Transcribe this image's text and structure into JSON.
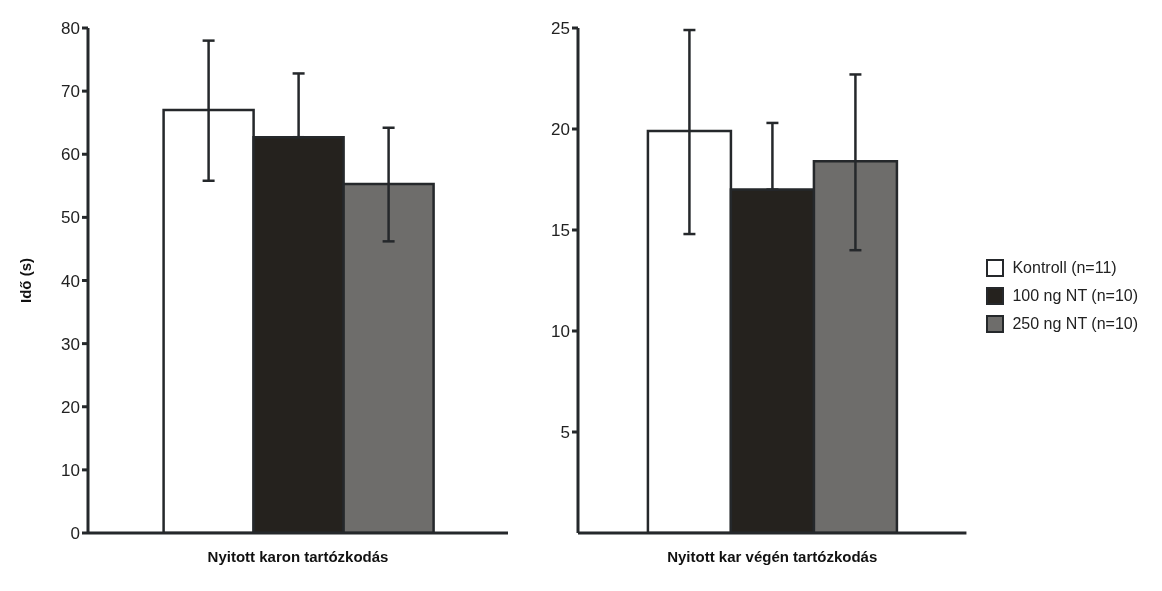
{
  "chart_data": [
    {
      "type": "bar",
      "ylabel": "Idő (s)",
      "categories": [
        "Nyitott karon tartózkodás"
      ],
      "ylim": [
        0,
        80
      ],
      "yticks": [
        0,
        10,
        20,
        30,
        40,
        50,
        60,
        70,
        80
      ],
      "series": [
        {
          "color": "#ffffff",
          "values": [
            67
          ],
          "errors": [
            [
              55.8,
              78
            ]
          ]
        },
        {
          "color": "#25221e",
          "values": [
            62.7
          ],
          "errors": [
            [
              62.7,
              72.8
            ]
          ]
        },
        {
          "color": "#6e6d6b",
          "values": [
            55.3
          ],
          "errors": [
            [
              46.2,
              64.2
            ]
          ]
        }
      ]
    },
    {
      "type": "bar",
      "categories": [
        "Nyitott kar végén tartózkodás"
      ],
      "ylim": [
        0,
        25
      ],
      "yticks": [
        5,
        10,
        15,
        20,
        25
      ],
      "legend": "right",
      "series": [
        {
          "name": "Kontroll (n=11)",
          "color": "#ffffff",
          "values": [
            19.9
          ],
          "errors": [
            [
              14.8,
              24.9
            ]
          ]
        },
        {
          "name": "100 ng NT (n=10)",
          "color": "#25221e",
          "values": [
            17.0
          ],
          "errors": [
            [
              17.0,
              20.3
            ]
          ]
        },
        {
          "name": "250 ng NT (n=10)",
          "color": "#6e6d6b",
          "values": [
            18.4
          ],
          "errors": [
            [
              14.0,
              22.7
            ]
          ]
        }
      ]
    }
  ]
}
